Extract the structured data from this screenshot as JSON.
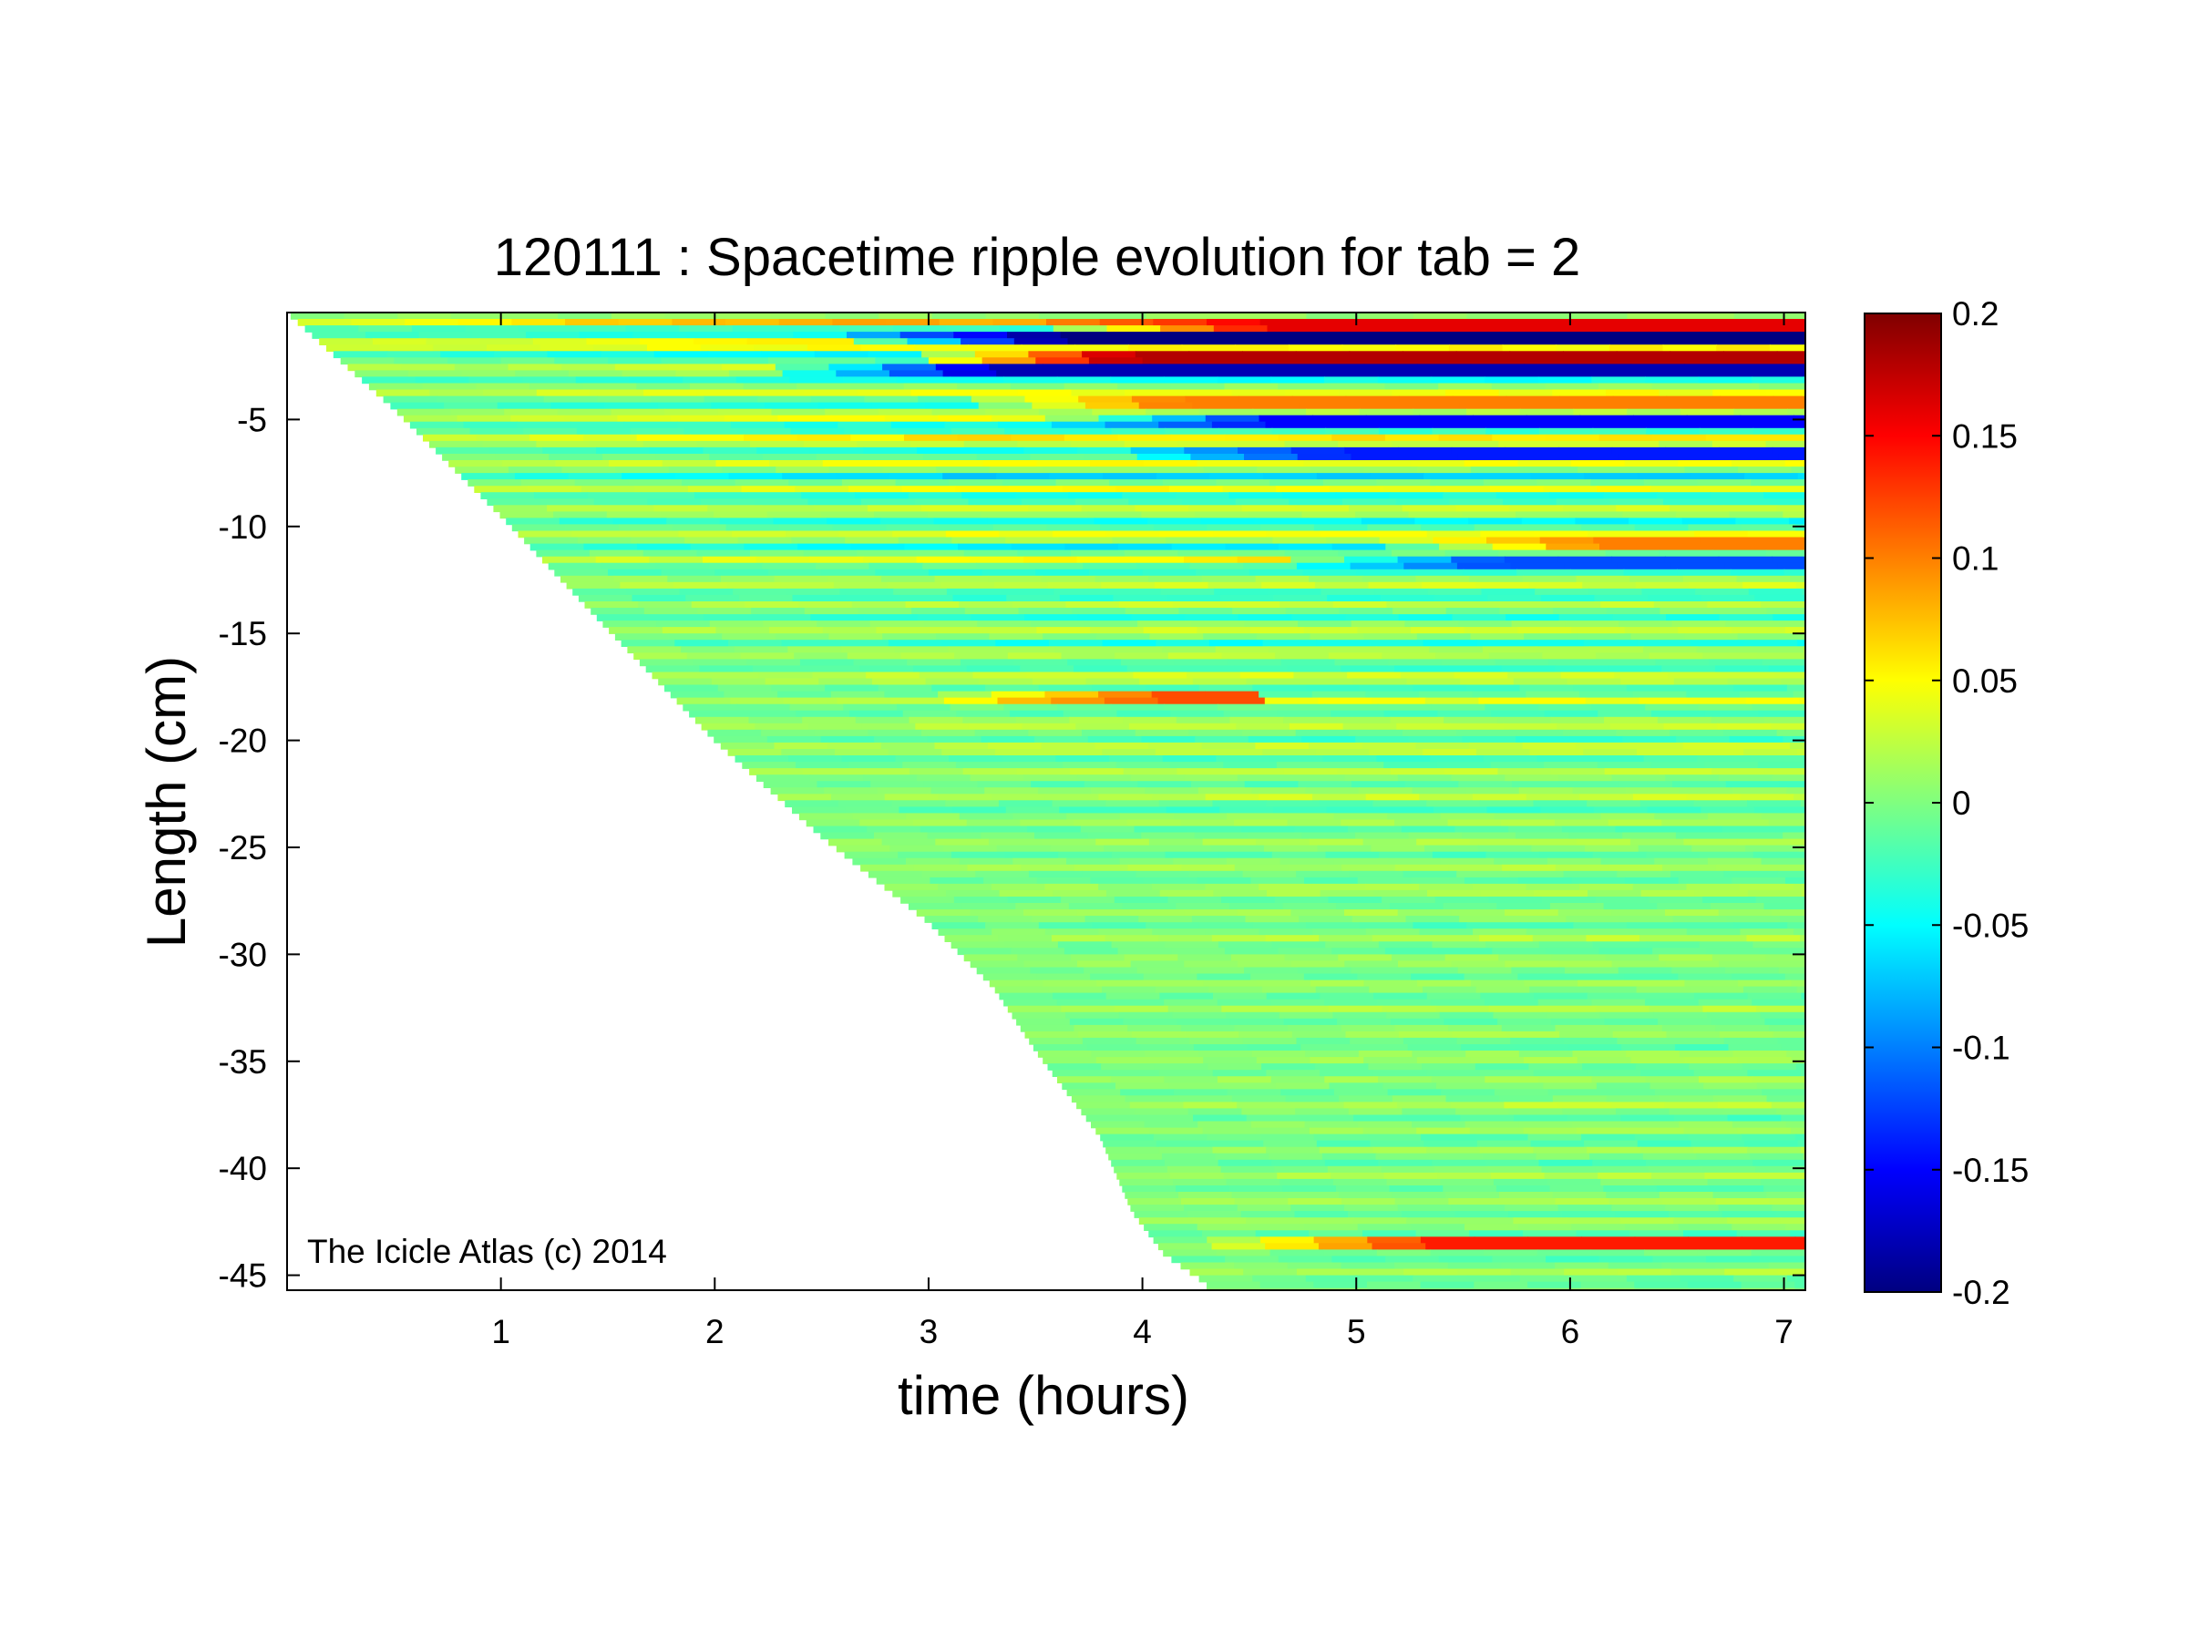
{
  "chart_data": {
    "type": "heatmap",
    "title": "120111 : Spacetime ripple evolution for tab = 2",
    "xlabel": "time (hours)",
    "ylabel": "Length (cm)",
    "xlim": [
      0,
      7.1
    ],
    "ylim": [
      -45.7,
      0
    ],
    "x_ticks": [
      1,
      2,
      3,
      4,
      5,
      6,
      7
    ],
    "x_tick_labels": [
      "1",
      "2",
      "3",
      "4",
      "5",
      "6",
      "7"
    ],
    "y_ticks": [
      -5,
      -10,
      -15,
      -20,
      -25,
      -30,
      -35,
      -40,
      -45
    ],
    "y_tick_labels": [
      "-5",
      "-10",
      "-15",
      "-20",
      "-25",
      "-30",
      "-35",
      "-40",
      "-45"
    ],
    "colorbar": {
      "colormap": "jet",
      "range": [
        -0.2,
        0.2
      ],
      "ticks": [
        0.2,
        0.15,
        0.1,
        0.05,
        0,
        -0.05,
        -0.1,
        -0.15,
        -0.2
      ],
      "tick_labels": [
        "0.2",
        "0.15",
        "0.1",
        "0.05",
        "0",
        "-0.05",
        "-0.1",
        "-0.15",
        "-0.2"
      ]
    },
    "growth_front": {
      "time_hours": [
        0,
        0.5,
        1,
        1.5,
        2,
        2.5,
        3,
        3.3,
        3.5,
        3.8,
        3.95,
        4.1,
        4.3
      ],
      "length_cm": [
        0,
        -4.5,
        -9.5,
        -14.8,
        -20,
        -24.5,
        -28.5,
        -31.5,
        -34.5,
        -38.5,
        -42,
        -44,
        -45.4
      ]
    },
    "strong_bands": [
      {
        "length_cm": -0.7,
        "value": 0.16,
        "t_from": 3.5,
        "t_to": 7.1
      },
      {
        "length_cm": -1.3,
        "value": -0.2,
        "t_from": 2.5,
        "t_to": 7.1
      },
      {
        "length_cm": -2.0,
        "value": 0.18,
        "t_from": 2.8,
        "t_to": 7.1
      },
      {
        "length_cm": -2.7,
        "value": -0.18,
        "t_from": 2.2,
        "t_to": 7.1
      },
      {
        "length_cm": -4.2,
        "value": 0.1,
        "t_from": 3.0,
        "t_to": 7.1
      },
      {
        "length_cm": -5.2,
        "value": -0.15,
        "t_from": 3.5,
        "t_to": 7.1
      },
      {
        "length_cm": -6.5,
        "value": -0.14,
        "t_from": 3.8,
        "t_to": 7.1
      },
      {
        "length_cm": -10.8,
        "value": 0.1,
        "t_from": 5.0,
        "t_to": 7.1
      },
      {
        "length_cm": -11.7,
        "value": -0.12,
        "t_from": 4.5,
        "t_to": 7.1
      },
      {
        "length_cm": -18.0,
        "value": 0.12,
        "t_from": 3.0,
        "t_to": 4.5
      },
      {
        "length_cm": -43.5,
        "value": 0.14,
        "t_from": 4.3,
        "t_to": 7.1
      }
    ],
    "watermark": "The Icicle Atlas (c) 2014"
  }
}
